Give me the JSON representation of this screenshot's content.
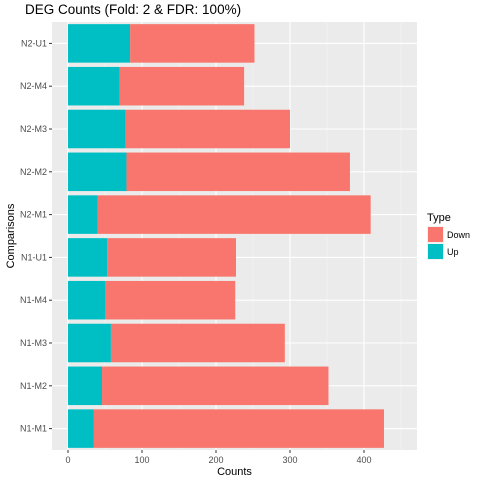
{
  "chart_data": {
    "type": "bar",
    "orientation": "horizontal",
    "stacked": true,
    "title": "DEG Counts (Fold: 2 & FDR: 100%)",
    "xlabel": "Counts",
    "ylabel": "Comparisons",
    "xlim": [
      0,
      450
    ],
    "x_ticks": [
      0,
      100,
      200,
      300,
      400
    ],
    "grid": true,
    "legend": {
      "title": "Type",
      "placement": "right"
    },
    "categories": [
      "N1-M1",
      "N1-M2",
      "N1-M3",
      "N1-M4",
      "N1-U1",
      "N2-M1",
      "N2-M2",
      "N2-M3",
      "N2-M4",
      "N2-U1"
    ],
    "series": [
      {
        "name": "Down",
        "color": "#F8766D",
        "values": [
          392,
          306,
          235,
          176,
          174,
          369,
          302,
          222,
          168,
          168
        ]
      },
      {
        "name": "Up",
        "color": "#00BFC4",
        "values": [
          35,
          46,
          58,
          50,
          53,
          40,
          79,
          78,
          70,
          84
        ]
      }
    ],
    "totals": [
      427,
      352,
      293,
      226,
      227,
      409,
      381,
      300,
      238,
      252
    ]
  }
}
